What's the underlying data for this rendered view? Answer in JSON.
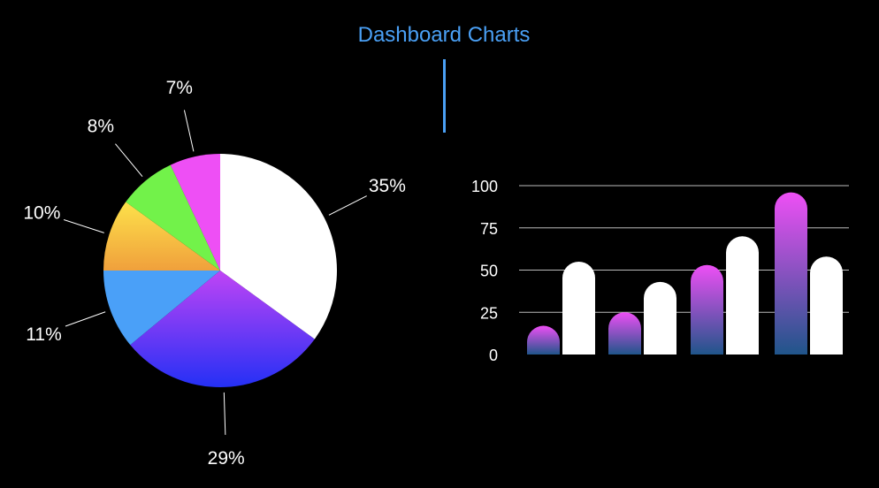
{
  "title": "Dashboard Charts",
  "colors": {
    "title": "#4aa0f5",
    "background": "#000000"
  },
  "chart_data": [
    {
      "type": "pie",
      "slices": [
        {
          "label": "35%",
          "value": 35,
          "color": "#ffffff"
        },
        {
          "label": "29%",
          "value": 29,
          "color": "gradient #c044f5 → #2430f5"
        },
        {
          "label": "11%",
          "value": 11,
          "color": "#4aa0f8"
        },
        {
          "label": "10%",
          "value": 10,
          "color": "gradient #fde14a → #f0a03c"
        },
        {
          "label": "8%",
          "value": 8,
          "color": "#72f24a"
        },
        {
          "label": "7%",
          "value": 7,
          "color": "#ee4ff5"
        }
      ],
      "start": "top",
      "direction": "clockwise"
    },
    {
      "type": "bar",
      "categories": [
        "",
        "",
        "",
        ""
      ],
      "series": [
        {
          "values": [
            17,
            25,
            53,
            96
          ],
          "color": "gradient #ee4ff5 → #20558a"
        },
        {
          "values": [
            55,
            43,
            70,
            58
          ],
          "color": "#ffffff"
        }
      ],
      "ylim": [
        0,
        100
      ],
      "yticks": [
        "0",
        "25",
        "50",
        "75",
        "100"
      ],
      "grid": true,
      "bar_style": "rounded-top"
    }
  ]
}
